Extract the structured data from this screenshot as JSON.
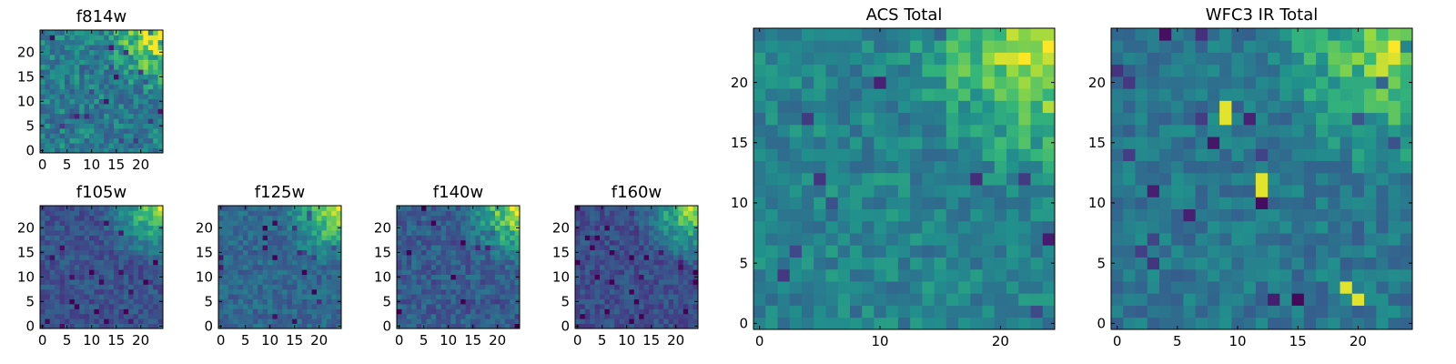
{
  "chart_data": [
    {
      "type": "heatmap",
      "title": "f814w",
      "grid": 25,
      "seed": 11,
      "base": 0.52,
      "corner_strength": 0.5,
      "noise": 0.17,
      "xticks": [
        0,
        5,
        10,
        15,
        20
      ],
      "yticks": [
        0,
        5,
        10,
        15,
        20
      ],
      "xlim": [
        -0.5,
        24.5
      ],
      "ylim": [
        -0.5,
        24.5
      ],
      "colormap": "viridis",
      "bright_region": "top-right"
    },
    {
      "type": "heatmap",
      "title": "f105w",
      "grid": 25,
      "seed": 23,
      "base": 0.32,
      "corner_strength": 0.6,
      "noise": 0.12,
      "xticks": [
        0,
        5,
        10,
        15,
        20
      ],
      "yticks": [
        0,
        5,
        10,
        15,
        20
      ],
      "xlim": [
        -0.5,
        24.5
      ],
      "ylim": [
        -0.5,
        24.5
      ],
      "colormap": "viridis",
      "bright_region": "top-right"
    },
    {
      "type": "heatmap",
      "title": "f125w",
      "grid": 25,
      "seed": 37,
      "base": 0.42,
      "corner_strength": 0.55,
      "noise": 0.12,
      "xticks": [
        0,
        5,
        10,
        15,
        20
      ],
      "yticks": [
        0,
        5,
        10,
        15,
        20
      ],
      "xlim": [
        -0.5,
        24.5
      ],
      "ylim": [
        -0.5,
        24.5
      ],
      "colormap": "viridis",
      "bright_region": "top-right"
    },
    {
      "type": "heatmap",
      "title": "f140w",
      "grid": 25,
      "seed": 41,
      "base": 0.36,
      "corner_strength": 0.6,
      "noise": 0.14,
      "xticks": [
        0,
        5,
        10,
        15,
        20
      ],
      "yticks": [
        0,
        5,
        10,
        15,
        20
      ],
      "xlim": [
        -0.5,
        24.5
      ],
      "ylim": [
        -0.5,
        24.5
      ],
      "colormap": "viridis",
      "bright_region": "top-right"
    },
    {
      "type": "heatmap",
      "title": "f160w",
      "grid": 25,
      "seed": 53,
      "base": 0.3,
      "corner_strength": 0.65,
      "noise": 0.12,
      "xticks": [
        0,
        5,
        10,
        15,
        20
      ],
      "yticks": [
        0,
        5,
        10,
        15,
        20
      ],
      "xlim": [
        -0.5,
        24.5
      ],
      "ylim": [
        -0.5,
        24.5
      ],
      "colormap": "viridis",
      "bright_region": "top-right"
    },
    {
      "type": "heatmap",
      "title": "ACS Total",
      "grid": 25,
      "seed": 61,
      "base": 0.55,
      "corner_strength": 0.45,
      "noise": 0.13,
      "xticks": [
        0,
        10,
        20
      ],
      "yticks": [
        0,
        5,
        10,
        15,
        20
      ],
      "xlim": [
        -0.5,
        24.5
      ],
      "ylim": [
        -0.5,
        24.5
      ],
      "colormap": "viridis",
      "bright_region": "top-right"
    },
    {
      "type": "heatmap",
      "title": "WFC3 IR Total",
      "grid": 25,
      "seed": 79,
      "base": 0.5,
      "corner_strength": 0.45,
      "noise": 0.13,
      "xticks": [
        0,
        5,
        10,
        15,
        20
      ],
      "yticks": [
        0,
        5,
        10,
        15,
        20
      ],
      "xlim": [
        -0.5,
        24.5
      ],
      "ylim": [
        -0.5,
        24.5
      ],
      "colormap": "viridis",
      "bright_region": "top-right",
      "hot_pixels": [
        [
          9,
          18
        ],
        [
          9,
          17
        ],
        [
          12,
          12
        ],
        [
          12,
          11
        ],
        [
          19,
          3
        ],
        [
          20,
          2
        ]
      ]
    }
  ]
}
